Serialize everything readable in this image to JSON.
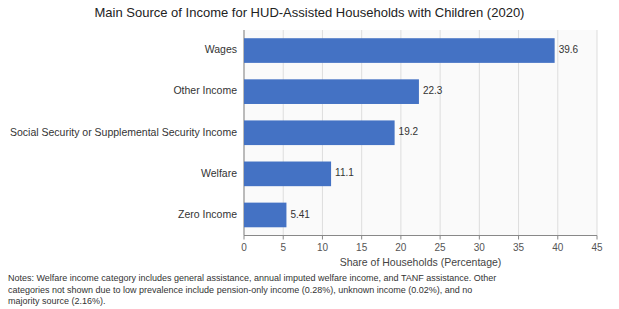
{
  "chart_data": {
    "type": "bar",
    "orientation": "horizontal",
    "title": "Main Source of Income for HUD-Assisted Households with Children (2020)",
    "categories": [
      "Wages",
      "Other Income",
      "Social Security or Supplemental Security Income",
      "Welfare",
      "Zero Income"
    ],
    "values": [
      39.6,
      22.3,
      19.2,
      11.1,
      5.41
    ],
    "color": "#4472C4",
    "xlabel": "Share of Households (Percentage)",
    "xlim": [
      0,
      45
    ],
    "xticks": [
      0,
      5,
      10,
      15,
      20,
      25,
      30,
      35,
      40,
      45
    ],
    "grid": true,
    "data_labels": true,
    "annotations": [
      "Notes: Welfare income category includes general assistance, annual imputed welfare income, and TANF assistance. Other",
      "categories not shown due to low prevalence include pension-only income (0.28%), unknown income (0.02%), and no",
      "majority source (2.16%)."
    ]
  }
}
